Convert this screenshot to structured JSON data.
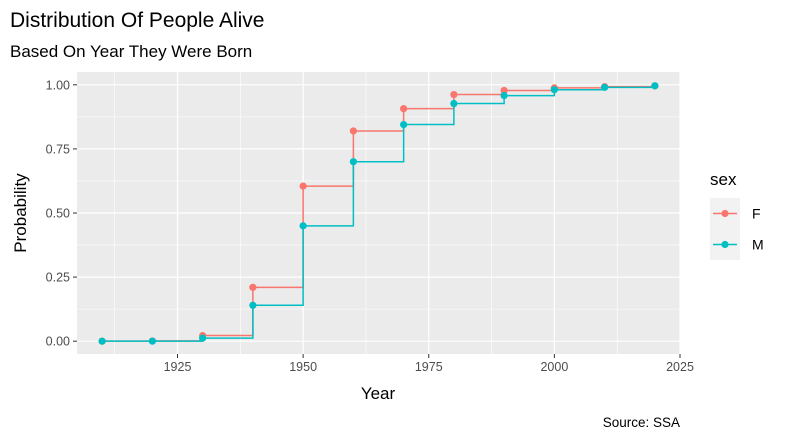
{
  "chart_data": {
    "type": "line",
    "step": true,
    "title": "Distribution Of People Alive",
    "subtitle": "Based On Year They Were Born",
    "xlabel": "Year",
    "ylabel": "Probability",
    "caption": "Source: SSA",
    "xlim": [
      1905,
      2025
    ],
    "ylim": [
      -0.05,
      1.05
    ],
    "x_ticks": [
      1925,
      1950,
      1975,
      2000,
      2025
    ],
    "y_ticks": [
      0.0,
      0.25,
      0.5,
      0.75,
      1.0
    ],
    "x_tick_labels": [
      "1925",
      "1950",
      "1975",
      "2000",
      "2025"
    ],
    "y_tick_labels": [
      "0.00",
      "0.25",
      "0.50",
      "0.75",
      "1.00"
    ],
    "grid": true,
    "legend": {
      "title": "sex",
      "position": "right"
    },
    "x": [
      1910,
      1920,
      1930,
      1940,
      1950,
      1960,
      1970,
      1980,
      1990,
      2000,
      2010,
      2020
    ],
    "series": [
      {
        "name": "F",
        "color": "#F8766D",
        "values": [
          0.0,
          0.001,
          0.022,
          0.21,
          0.605,
          0.82,
          0.907,
          0.962,
          0.978,
          0.988,
          0.993,
          0.996
        ]
      },
      {
        "name": "M",
        "color": "#00BFC4",
        "values": [
          0.0,
          0.0,
          0.012,
          0.14,
          0.45,
          0.7,
          0.845,
          0.927,
          0.958,
          0.981,
          0.99,
          0.996
        ]
      }
    ]
  }
}
